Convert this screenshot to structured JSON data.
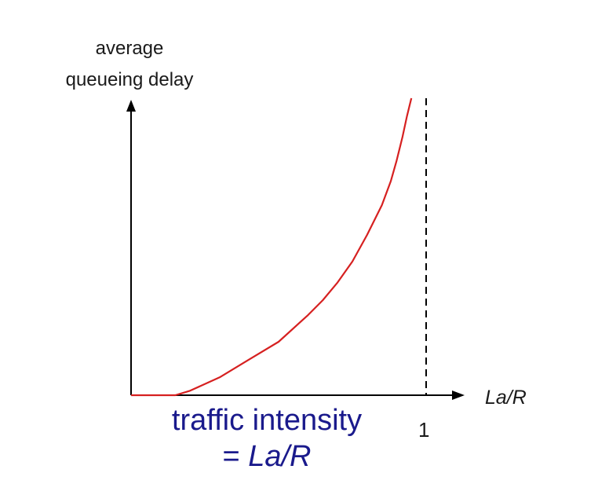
{
  "chart_data": {
    "type": "line",
    "ylabel_lines": [
      "average",
      "queueing delay"
    ],
    "xlabel": "La/R",
    "x_ticks": [
      "1"
    ],
    "asymptote_x": 1,
    "xlim": [
      0,
      1.1
    ],
    "ylim": [
      0,
      1
    ],
    "annotation": {
      "line1": "traffic intensity",
      "line2_prefix": "= ",
      "line2_formula": "La/R"
    },
    "series": [
      {
        "x": [
          0.0,
          0.15,
          0.2,
          0.3,
          0.4,
          0.5,
          0.6,
          0.65,
          0.7,
          0.75,
          0.8,
          0.85,
          0.88,
          0.9,
          0.92,
          0.935,
          0.945,
          0.95
        ],
        "y": [
          0.0,
          0.0,
          0.015,
          0.06,
          0.12,
          0.18,
          0.27,
          0.32,
          0.38,
          0.45,
          0.54,
          0.64,
          0.72,
          0.79,
          0.87,
          0.94,
          0.98,
          1.0
        ]
      }
    ],
    "colors": {
      "curve": "#d62020",
      "axis": "#000000",
      "caption": "#1a1a8c"
    }
  }
}
